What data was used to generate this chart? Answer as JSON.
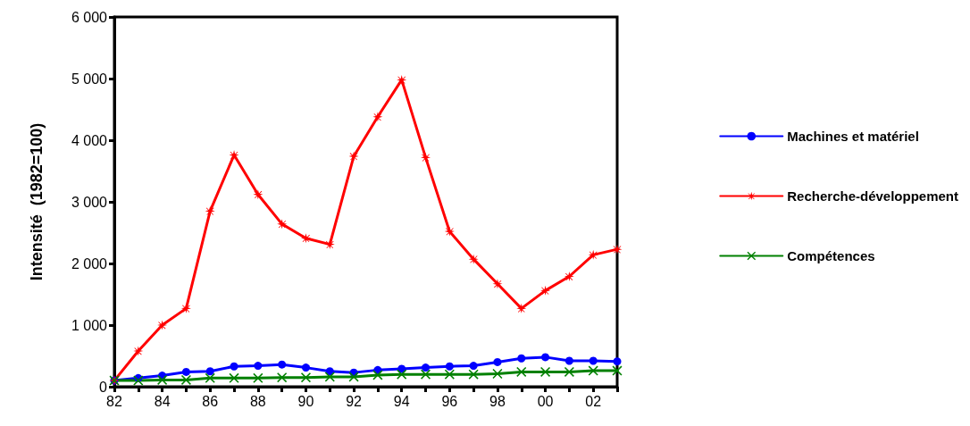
{
  "chart_data": {
    "type": "line",
    "ylabel": "Intensité  (1982=100)",
    "categories": [
      "82",
      null,
      "84",
      null,
      "86",
      null,
      "88",
      null,
      "90",
      null,
      "92",
      null,
      "94",
      null,
      "96",
      null,
      "98",
      null,
      "00",
      null,
      "02",
      null
    ],
    "series": [
      {
        "name": "Machines et matériel",
        "color": "#0000ff",
        "marker": "circle",
        "values": [
          100,
          140,
          180,
          240,
          250,
          330,
          340,
          360,
          310,
          250,
          230,
          270,
          290,
          310,
          330,
          340,
          400,
          460,
          480,
          420,
          420,
          410
        ]
      },
      {
        "name": "Recherche-développement",
        "color": "#ff0000",
        "marker": "star",
        "values": [
          100,
          580,
          1000,
          1270,
          2850,
          3760,
          3120,
          2640,
          2410,
          2310,
          3740,
          4380,
          4980,
          3720,
          2520,
          2070,
          1670,
          1270,
          1560,
          1790,
          2140,
          2230
        ]
      },
      {
        "name": "Compétences",
        "color": "#008000",
        "marker": "cross",
        "values": [
          100,
          100,
          110,
          110,
          140,
          140,
          140,
          150,
          150,
          160,
          160,
          190,
          200,
          200,
          200,
          200,
          210,
          240,
          240,
          240,
          260,
          260
        ]
      }
    ],
    "ylim": [
      0,
      6000
    ],
    "yticks": [
      0,
      {
        "value": 1000,
        "label": "1 000"
      },
      {
        "value": 2000,
        "label": "2 000"
      },
      {
        "value": 3000,
        "label": "3 000"
      },
      {
        "value": 4000,
        "label": "4 000"
      },
      {
        "value": 5000,
        "label": "5 000"
      },
      {
        "value": 6000,
        "label": "6 000"
      }
    ],
    "grid": false,
    "legend": "right",
    "line_style": "solid"
  }
}
